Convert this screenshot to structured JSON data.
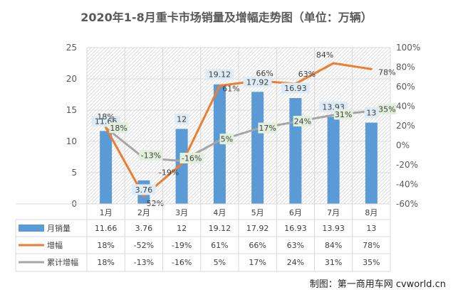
{
  "chart_data": {
    "type": "bar",
    "title": "2020年1-8月重卡市场销量及增幅走势图（单位：万辆）",
    "categories": [
      "1月",
      "2月",
      "3月",
      "4月",
      "5月",
      "6月",
      "7月",
      "8月"
    ],
    "series": [
      {
        "name": "月销量",
        "type": "bar",
        "axis": "left",
        "color": "#5B9BD5",
        "values": [
          11.66,
          3.76,
          12,
          19.12,
          17.92,
          16.93,
          13.93,
          13
        ],
        "labels": [
          "11.66",
          "3.76",
          "12",
          "19.12",
          "17.92",
          "16.93",
          "13.93",
          "13"
        ]
      },
      {
        "name": "增幅",
        "type": "line",
        "axis": "right",
        "color": "#ED7D31",
        "values": [
          18,
          -52,
          -19,
          61,
          66,
          63,
          84,
          78
        ],
        "labels": [
          "18%",
          "-52%",
          "-19%",
          "61%",
          "66%",
          "63%",
          "84%",
          "78%"
        ]
      },
      {
        "name": "累计增幅",
        "type": "line",
        "axis": "right",
        "color": "#A5A5A5",
        "values": [
          18,
          -13,
          -16,
          5,
          17,
          24,
          31,
          35
        ],
        "labels": [
          "18%",
          "-13%",
          "-16%",
          "5%",
          "17%",
          "24%",
          "31%",
          "35%"
        ]
      }
    ],
    "y_left": {
      "min": 0,
      "max": 25,
      "step": 5,
      "ticks": [
        "0",
        "5",
        "10",
        "15",
        "20",
        "25"
      ]
    },
    "y_right": {
      "min": -60,
      "max": 100,
      "step": 20,
      "ticks": [
        "-60%",
        "-40%",
        "-20%",
        "0%",
        "20%",
        "40%",
        "60%",
        "80%",
        "100%"
      ]
    },
    "grid": true,
    "legend": "data-table",
    "credit": "制图：第一商用车网 cvworld.cn"
  }
}
